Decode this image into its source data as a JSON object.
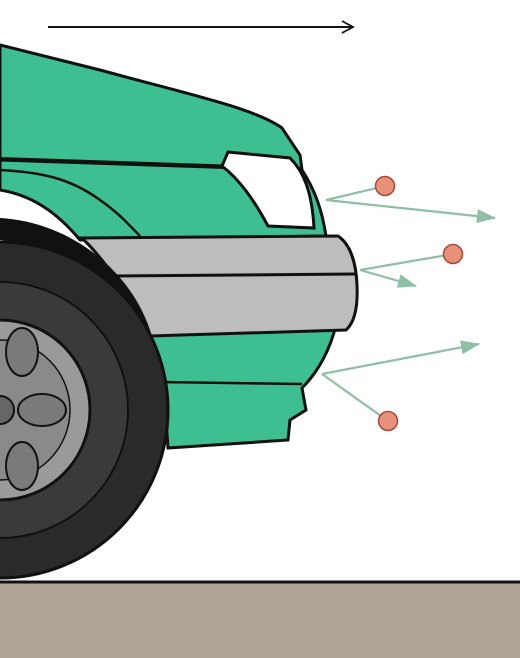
{
  "colors": {
    "background": "#ffffff",
    "car_body": "#3dbf91",
    "bumper": "#bdbdbd",
    "headlight": "#ffffff",
    "tire": "#2a2a2a",
    "hubcap": "#9a9a9a",
    "ground": "#b0a595",
    "outline": "#111111",
    "particle": "#e8907a",
    "particle_stroke": "#a84a38",
    "flow_arrow": "#8fbfa4"
  },
  "icons": {
    "motion_arrow": "arrow-right-icon",
    "particle": "circle-icon",
    "flow_arrow": "arrow-right-icon"
  },
  "particle_count": 3,
  "flow_arrow_count": 3
}
